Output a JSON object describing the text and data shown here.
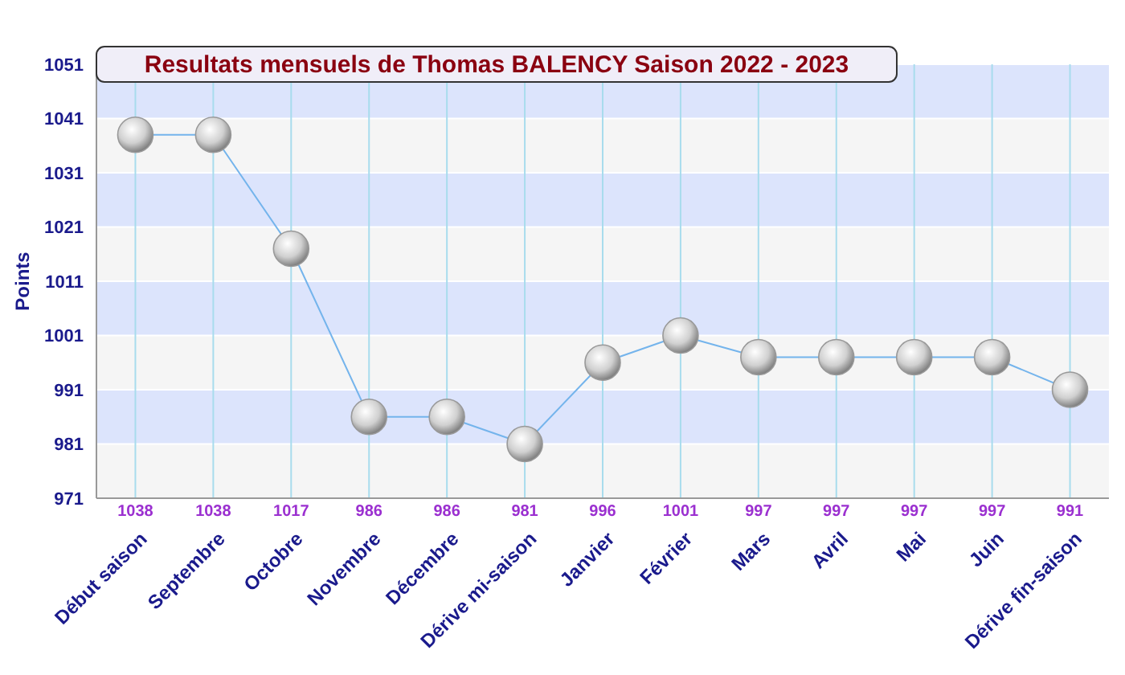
{
  "chart_data": {
    "type": "line",
    "title": "Resultats mensuels de Thomas BALENCY Saison 2022 - 2023",
    "ylabel": "Points",
    "categories": [
      "Début saison",
      "Septembre",
      "Octobre",
      "Novembre",
      "Décembre",
      "Dérive mi-saison",
      "Janvier",
      "Février",
      "Mars",
      "Avril",
      "Mai",
      "Juin",
      "Dérive fin-saison"
    ],
    "series": [
      {
        "color": "#74b4ec",
        "values": [
          1038,
          1038,
          1017,
          986,
          986,
          981,
          996,
          1001,
          997,
          997,
          997,
          997,
          991
        ]
      }
    ],
    "ylim": [
      971,
      1051
    ],
    "yticks": [
      971,
      981,
      991,
      1001,
      1011,
      1021,
      1031,
      1041,
      1051
    ],
    "grid": true,
    "marker": "circle",
    "data_labels": true
  }
}
